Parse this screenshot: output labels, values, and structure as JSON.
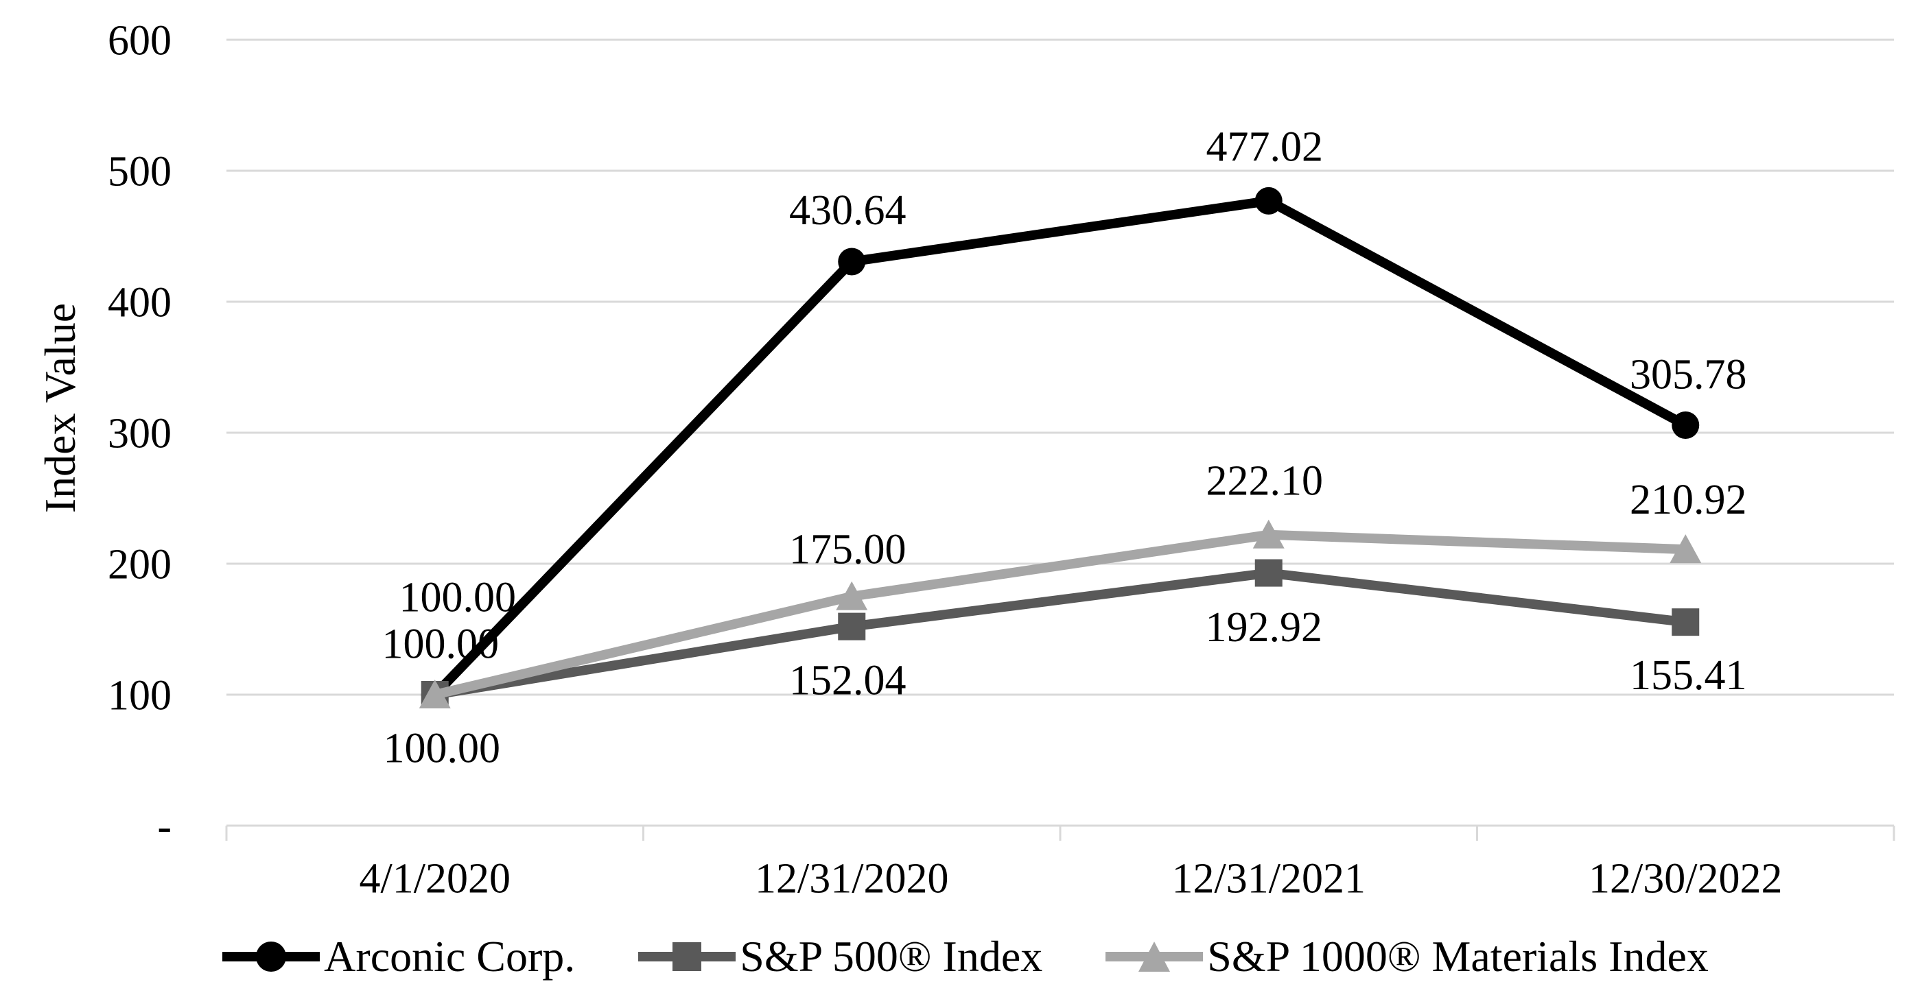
{
  "figure": {
    "background": "#ffffff",
    "text_color": "#000000"
  },
  "chart_data": {
    "type": "line",
    "title": "",
    "xlabel": "",
    "ylabel": "Index Value",
    "ylim": [
      0,
      600
    ],
    "grid": "horizontal",
    "gridline_color": "#d9d9d9",
    "axis_color": "#d9d9d9",
    "legend_position": "bottom",
    "categories": [
      "4/1/2020",
      "12/31/2020",
      "12/31/2021",
      "12/30/2022"
    ],
    "y_ticks": [
      {
        "label": "-",
        "value": 0
      },
      {
        "label": "100",
        "value": 100
      },
      {
        "label": "200",
        "value": 200
      },
      {
        "label": "300",
        "value": 300
      },
      {
        "label": "400",
        "value": 400
      },
      {
        "label": "500",
        "value": 500
      },
      {
        "label": "600",
        "value": 600
      }
    ],
    "series": [
      {
        "name": "Arconic Corp.",
        "marker": "circle",
        "color": "#000000",
        "values": [
          100.0,
          430.64,
          477.02,
          305.78
        ],
        "labels": [
          "100.00",
          "430.64",
          "477.02",
          "305.78"
        ],
        "label_offsets": [
          [
            8,
            -75
          ],
          [
            -6,
            -76
          ],
          [
            -6,
            -80
          ],
          [
            4,
            -75
          ]
        ]
      },
      {
        "name": "S&P 500® Index",
        "marker": "square",
        "color": "#595959",
        "values": [
          100.0,
          152.04,
          192.92,
          155.41
        ],
        "labels": [
          "100.00",
          "152.04",
          "192.92",
          "155.41"
        ],
        "label_offsets": [
          [
            10,
            77
          ],
          [
            -6,
            77
          ],
          [
            -7,
            78
          ],
          [
            4,
            76
          ]
        ]
      },
      {
        "name": "S&P 1000® Materials Index",
        "marker": "triangle",
        "color": "#a6a6a6",
        "values": [
          100.0,
          175.0,
          222.1,
          210.92
        ],
        "labels": [
          "100.00",
          "175.00",
          "222.10",
          "210.92"
        ],
        "label_offsets": [
          [
            33,
            -143
          ],
          [
            -6,
            -70
          ],
          [
            -6,
            -80
          ],
          [
            4,
            -74
          ]
        ]
      }
    ]
  }
}
